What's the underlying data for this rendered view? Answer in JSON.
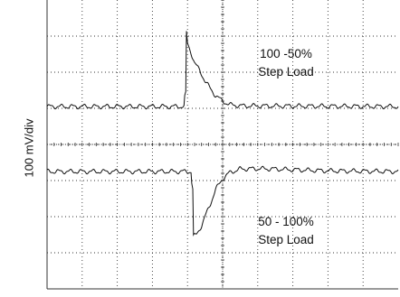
{
  "chart_data": {
    "type": "line",
    "title": "",
    "xlabel": "",
    "ylabel": "100 mV/div",
    "grid": true,
    "grid_divisions": {
      "x": 10,
      "y": 8
    },
    "x_range_div": [
      0,
      10
    ],
    "y_range_div": [
      0,
      8
    ],
    "annotations": [
      {
        "line1": "100 -50%",
        "line2": "Step Load"
      },
      {
        "line1": "50 - 100%",
        "line2": "Step Load"
      }
    ],
    "series": [
      {
        "baseline_div": 5.05,
        "ripple_amplitude_div": 0.05,
        "points_div": [
          [
            0.0,
            5.05
          ],
          [
            3.9,
            5.05
          ],
          [
            3.92,
            5.3
          ],
          [
            3.95,
            5.4
          ],
          [
            3.97,
            7.1
          ],
          [
            4.0,
            6.8
          ],
          [
            4.1,
            6.55
          ],
          [
            4.2,
            6.25
          ],
          [
            4.35,
            6.05
          ],
          [
            4.5,
            5.75
          ],
          [
            4.65,
            5.55
          ],
          [
            4.8,
            5.35
          ],
          [
            5.0,
            5.2
          ],
          [
            5.2,
            5.1
          ],
          [
            5.5,
            5.07
          ],
          [
            10.0,
            5.05
          ]
        ]
      },
      {
        "baseline_div": 3.25,
        "ripple_amplitude_div": 0.05,
        "points_div": [
          [
            0.0,
            3.25
          ],
          [
            4.1,
            3.25
          ],
          [
            4.12,
            2.95
          ],
          [
            4.15,
            2.75
          ],
          [
            4.17,
            1.45
          ],
          [
            4.25,
            1.5
          ],
          [
            4.4,
            1.75
          ],
          [
            4.5,
            2.0
          ],
          [
            4.65,
            2.35
          ],
          [
            4.8,
            2.75
          ],
          [
            5.0,
            3.05
          ],
          [
            5.2,
            3.22
          ],
          [
            5.5,
            3.32
          ],
          [
            6.0,
            3.33
          ],
          [
            6.5,
            3.32
          ],
          [
            7.0,
            3.3
          ],
          [
            8.0,
            3.27
          ],
          [
            10.0,
            3.25
          ]
        ]
      }
    ]
  }
}
